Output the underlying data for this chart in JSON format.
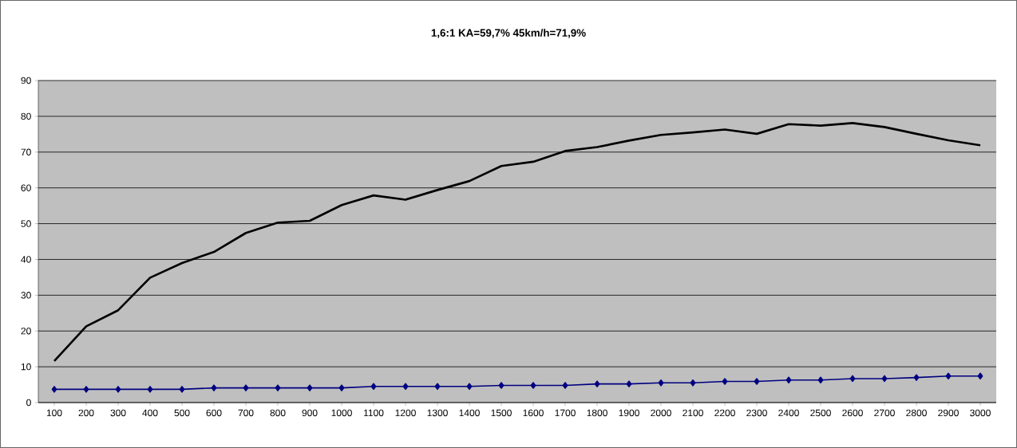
{
  "chart_data": {
    "type": "line",
    "title": "1,6:1 KA=59,7%  45km/h=71,9%",
    "categories": [
      "100",
      "200",
      "300",
      "400",
      "500",
      "600",
      "700",
      "800",
      "900",
      "1000",
      "1100",
      "1200",
      "1300",
      "1400",
      "1500",
      "1600",
      "1700",
      "1800",
      "1900",
      "2000",
      "2100",
      "2200",
      "2300",
      "2400",
      "2500",
      "2600",
      "2700",
      "2800",
      "2900",
      "3000"
    ],
    "series": [
      {
        "color": "#000000",
        "marker": "none",
        "values": [
          11.6,
          21.3,
          25.8,
          34.9,
          39.0,
          42.1,
          47.4,
          50.3,
          50.8,
          55.2,
          57.9,
          56.7,
          59.4,
          61.9,
          66.1,
          67.3,
          70.3,
          71.4,
          73.2,
          74.8,
          75.5,
          76.3,
          75.1,
          77.8,
          77.4,
          78.1,
          77.0,
          75.1,
          73.3,
          71.9
        ]
      },
      {
        "color": "#000080",
        "marker": "diamond",
        "values": [
          3.7,
          3.7,
          3.7,
          3.7,
          3.7,
          4.1,
          4.1,
          4.1,
          4.1,
          4.1,
          4.5,
          4.5,
          4.5,
          4.5,
          4.8,
          4.8,
          4.8,
          5.2,
          5.2,
          5.5,
          5.5,
          5.9,
          5.9,
          6.3,
          6.3,
          6.7,
          6.7,
          7.0,
          7.4,
          7.4
        ]
      }
    ],
    "ylim": [
      0,
      90
    ],
    "yticks": [
      0,
      10,
      20,
      30,
      40,
      50,
      60,
      70,
      80,
      90
    ],
    "grid": "y",
    "legend": false
  }
}
